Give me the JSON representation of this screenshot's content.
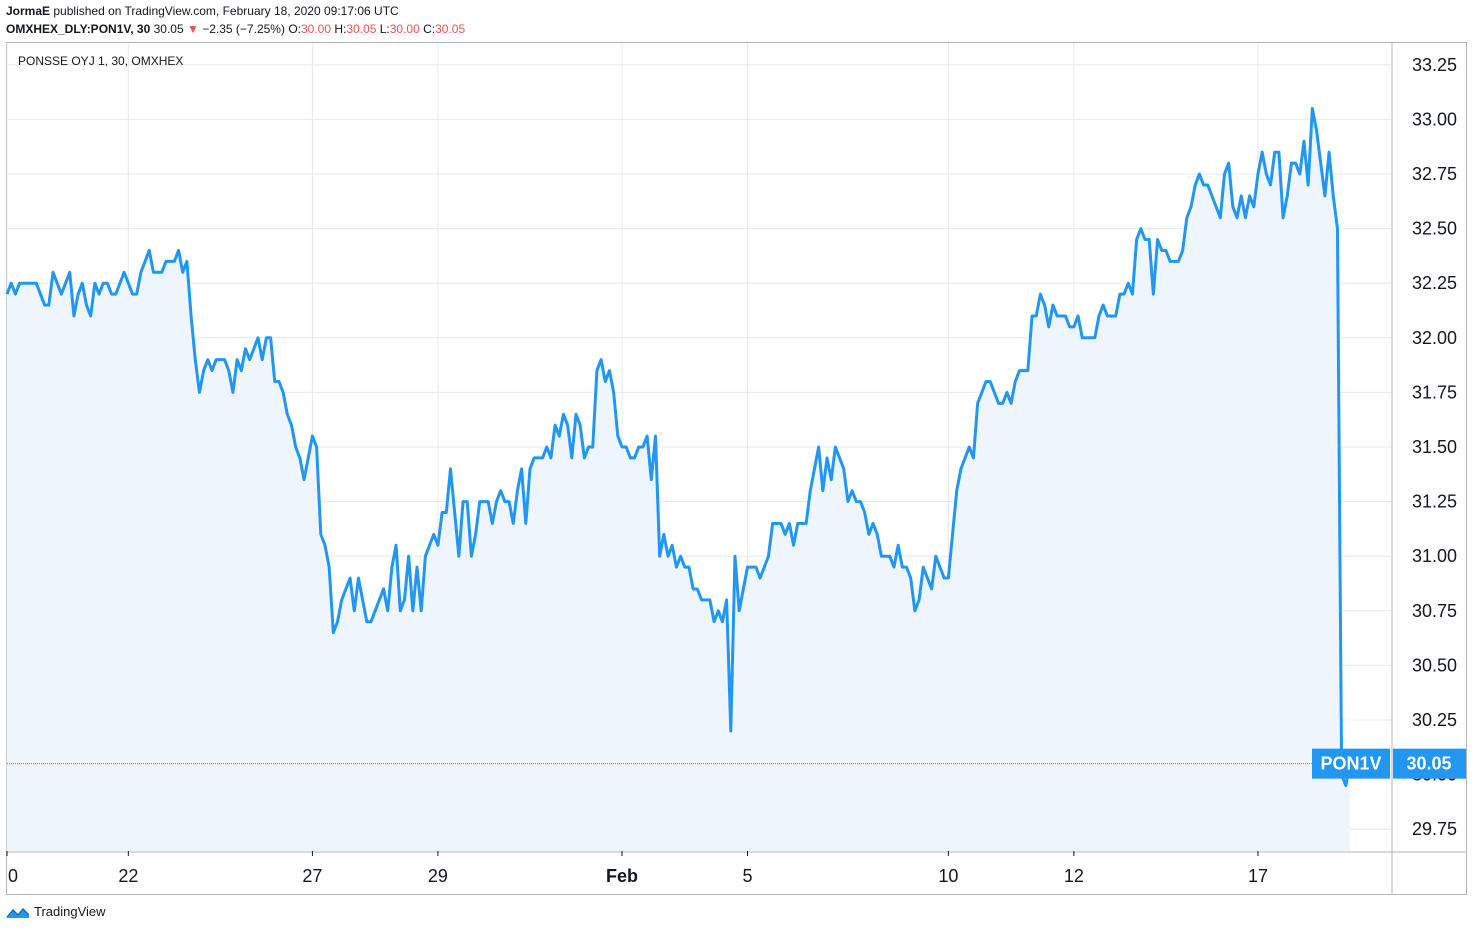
{
  "header": {
    "author": "JormaE",
    "published_text": "published on TradingView.com, February 18, 2020 09:17:06 UTC",
    "symbol": "OMXHEX_DLY:PON1V, 30",
    "last": "30.05",
    "change": "−2.35 (−7.25%)",
    "change_arrow": "▼",
    "open_label": "O:",
    "open": "30.00",
    "high_label": "H:",
    "high": "30.05",
    "low_label": "L:",
    "low": "30.00",
    "close_label": "C:",
    "close": "30.05"
  },
  "chart_title": "PONSSE OYJ 1, 30, OMXHEX",
  "price_tag": {
    "symbol": "PON1V",
    "value": "30.05",
    "color": "#2196f3"
  },
  "footer": {
    "brand": "TradingView",
    "logo": "tradingview-logo-icon"
  },
  "chart_data": {
    "type": "line",
    "title": "PONSSE OYJ 1, 30, OMXHEX",
    "line_color": "#2196f3",
    "fill_color": "#eef5fc",
    "grid": true,
    "ylim": [
      29.65,
      33.35
    ],
    "y_ticks": [
      "29.75",
      "30.00",
      "30.25",
      "30.50",
      "30.75",
      "31.00",
      "31.25",
      "31.50",
      "31.75",
      "32.00",
      "32.25",
      "32.50",
      "32.75",
      "33.00",
      "33.25"
    ],
    "x_ticks": [
      {
        "label": "0",
        "i": 0
      },
      {
        "label": "22",
        "i": 29
      },
      {
        "label": "27",
        "i": 73
      },
      {
        "label": "29",
        "i": 103
      },
      {
        "label": "Feb",
        "i": 147
      },
      {
        "label": "5",
        "i": 177
      },
      {
        "label": "10",
        "i": 225
      },
      {
        "label": "12",
        "i": 255
      },
      {
        "label": "17",
        "i": 299
      }
    ],
    "n_points": 318,
    "values": [
      32.2,
      32.25,
      32.2,
      32.25,
      32.25,
      32.25,
      32.25,
      32.25,
      32.2,
      32.15,
      32.15,
      32.3,
      32.25,
      32.2,
      32.25,
      32.3,
      32.1,
      32.2,
      32.25,
      32.15,
      32.1,
      32.25,
      32.2,
      32.25,
      32.25,
      32.2,
      32.2,
      32.25,
      32.3,
      32.25,
      32.2,
      32.2,
      32.3,
      32.35,
      32.4,
      32.3,
      32.3,
      32.3,
      32.35,
      32.35,
      32.35,
      32.4,
      32.3,
      32.35,
      32.1,
      31.9,
      31.75,
      31.85,
      31.9,
      31.85,
      31.9,
      31.9,
      31.9,
      31.85,
      31.75,
      31.9,
      31.85,
      31.95,
      31.9,
      31.95,
      32.0,
      31.9,
      32.0,
      32.0,
      31.8,
      31.8,
      31.75,
      31.65,
      31.6,
      31.5,
      31.45,
      31.35,
      31.45,
      31.55,
      31.5,
      31.1,
      31.05,
      30.95,
      30.65,
      30.7,
      30.8,
      30.85,
      30.9,
      30.75,
      30.9,
      30.8,
      30.7,
      30.7,
      30.75,
      30.8,
      30.85,
      30.75,
      30.95,
      31.05,
      30.75,
      30.8,
      31.0,
      30.75,
      30.95,
      30.75,
      31.0,
      31.05,
      31.1,
      31.05,
      31.2,
      31.2,
      31.4,
      31.2,
      31.0,
      31.25,
      31.25,
      31.0,
      31.1,
      31.25,
      31.25,
      31.25,
      31.15,
      31.25,
      31.3,
      31.25,
      31.25,
      31.15,
      31.3,
      31.4,
      31.15,
      31.4,
      31.45,
      31.45,
      31.45,
      31.5,
      31.45,
      31.6,
      31.55,
      31.65,
      31.6,
      31.45,
      31.65,
      31.6,
      31.45,
      31.5,
      31.5,
      31.85,
      31.9,
      31.8,
      31.85,
      31.75,
      31.55,
      31.5,
      31.5,
      31.45,
      31.45,
      31.5,
      31.5,
      31.55,
      31.35,
      31.55,
      31.0,
      31.1,
      31.0,
      31.05,
      30.95,
      31.0,
      30.95,
      30.95,
      30.85,
      30.85,
      30.8,
      30.8,
      30.8,
      30.7,
      30.75,
      30.7,
      30.8,
      30.2,
      31.0,
      30.75,
      30.85,
      30.95,
      30.95,
      30.95,
      30.9,
      30.95,
      31.0,
      31.15,
      31.15,
      31.15,
      31.1,
      31.15,
      31.05,
      31.15,
      31.15,
      31.15,
      31.3,
      31.4,
      31.5,
      31.3,
      31.45,
      31.35,
      31.5,
      31.45,
      31.4,
      31.25,
      31.3,
      31.25,
      31.25,
      31.2,
      31.1,
      31.15,
      31.1,
      31.0,
      31.0,
      31.0,
      30.95,
      31.05,
      30.95,
      30.95,
      30.9,
      30.75,
      30.8,
      30.95,
      30.9,
      30.85,
      31.0,
      30.95,
      30.9,
      30.9,
      31.1,
      31.3,
      31.4,
      31.45,
      31.5,
      31.45,
      31.7,
      31.75,
      31.8,
      31.8,
      31.75,
      31.7,
      31.7,
      31.75,
      31.7,
      31.8,
      31.85,
      31.85,
      31.85,
      32.1,
      32.1,
      32.2,
      32.15,
      32.05,
      32.15,
      32.1,
      32.1,
      32.1,
      32.05,
      32.05,
      32.1,
      32.0,
      32.0,
      32.0,
      32.0,
      32.1,
      32.15,
      32.1,
      32.1,
      32.1,
      32.2,
      32.2,
      32.25,
      32.2,
      32.45,
      32.5,
      32.45,
      32.45,
      32.2,
      32.45,
      32.4,
      32.4,
      32.35,
      32.35,
      32.35,
      32.4,
      32.55,
      32.6,
      32.7,
      32.75,
      32.7,
      32.7,
      32.65,
      32.6,
      32.55,
      32.75,
      32.8,
      32.6,
      32.55,
      32.65,
      32.55,
      32.65,
      32.6,
      32.75,
      32.85,
      32.75,
      32.7,
      32.85,
      32.85,
      32.55,
      32.65,
      32.8,
      32.8,
      32.75,
      32.9,
      32.7,
      33.05,
      32.95,
      32.8,
      32.65,
      32.85,
      32.65,
      32.5,
      30.0,
      29.95,
      30.05
    ],
    "last_value": 30.05
  }
}
